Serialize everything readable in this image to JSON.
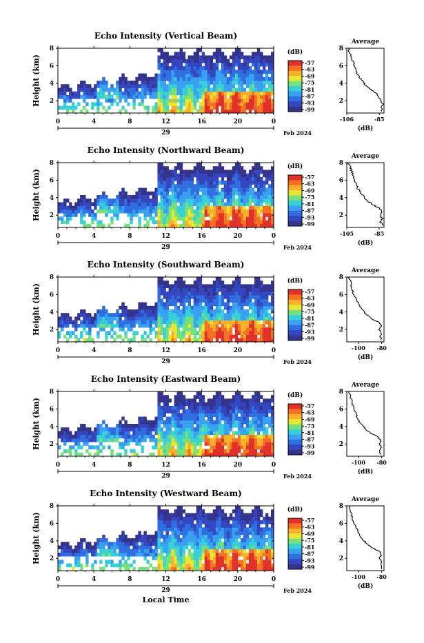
{
  "chart_data": [
    {
      "type": "heatmap",
      "title": "Echo Intensity (Vertical Beam)",
      "ylabel": "Height (km)",
      "ylim": [
        0.6,
        8
      ],
      "y_ticks": [
        "2",
        "4",
        "6",
        "8"
      ],
      "xlim": [
        0,
        24
      ],
      "x_ticks": [
        "0",
        "4",
        "8",
        "12",
        "16",
        "20",
        "0"
      ],
      "date_label": "29",
      "month_label": "Feb 2024",
      "colorbar": {
        "unit": "(dB)",
        "tick_labels": [
          "-57",
          "-63",
          "-69",
          "-75",
          "-81",
          "-87",
          "-93",
          "-99"
        ],
        "colors": [
          "#e0322a",
          "#f47023",
          "#f9b12c",
          "#e8e832",
          "#78e07a",
          "#38d0d8",
          "#3aa0f0",
          "#2f6fe0",
          "#3446c0",
          "#34348c"
        ]
      },
      "average_profile": {
        "title": "Average",
        "xlabel": "(dB)",
        "x_ticks": [
          "-106",
          "-85"
        ],
        "xlim": [
          -106,
          -82
        ],
        "y_ticks": [
          "2",
          "4",
          "6",
          "8"
        ],
        "ylim": [
          0.6,
          8
        ],
        "height_km": [
          0.8,
          1.2,
          1.6,
          2.0,
          2.4,
          2.8,
          3.2,
          3.6,
          4.0,
          4.5,
          5.0,
          5.5,
          6.0,
          6.5,
          7.0,
          7.5,
          8.0
        ],
        "intensity_db": [
          -83,
          -84,
          -83,
          -84,
          -85,
          -86,
          -90,
          -93,
          -95,
          -97,
          -99,
          -100,
          -101,
          -102,
          -103,
          -104,
          -105
        ]
      }
    },
    {
      "type": "heatmap",
      "title": "Echo Intensity (Northward Beam)",
      "ylabel": "Height (km)",
      "ylim": [
        0.6,
        8
      ],
      "y_ticks": [
        "2",
        "4",
        "6",
        "8"
      ],
      "xlim": [
        0,
        24
      ],
      "x_ticks": [
        "0",
        "4",
        "8",
        "12",
        "16",
        "20",
        "0"
      ],
      "date_label": "29",
      "month_label": "Feb 2024",
      "colorbar": {
        "unit": "(dB)",
        "tick_labels": [
          "-57",
          "-63",
          "-69",
          "-75",
          "-81",
          "-87",
          "-93",
          "-99"
        ],
        "colors": [
          "#e0322a",
          "#f47023",
          "#f9b12c",
          "#e8e832",
          "#78e07a",
          "#38d0d8",
          "#3aa0f0",
          "#2f6fe0",
          "#3446c0",
          "#34348c"
        ]
      },
      "average_profile": {
        "title": "Average",
        "xlabel": "(dB)",
        "x_ticks": [
          "-105",
          "-85"
        ],
        "xlim": [
          -105,
          -82
        ],
        "y_ticks": [
          "2",
          "4",
          "6",
          "8"
        ],
        "ylim": [
          0.6,
          8
        ],
        "height_km": [
          0.8,
          1.2,
          1.6,
          2.0,
          2.4,
          2.8,
          3.2,
          3.6,
          4.0,
          4.5,
          5.0,
          5.5,
          6.0,
          6.5,
          7.0,
          7.5,
          8.0
        ],
        "intensity_db": [
          -83,
          -84,
          -83,
          -84,
          -83,
          -85,
          -89,
          -92,
          -94,
          -96,
          -98,
          -99,
          -100,
          -101,
          -102,
          -103,
          -104
        ]
      }
    },
    {
      "type": "heatmap",
      "title": "Echo Intensity (Southward Beam)",
      "ylabel": "Height (km)",
      "ylim": [
        0.6,
        8
      ],
      "y_ticks": [
        "2",
        "4",
        "6",
        "8"
      ],
      "xlim": [
        0,
        24
      ],
      "x_ticks": [
        "0",
        "4",
        "8",
        "12",
        "16",
        "20",
        "0"
      ],
      "date_label": "29",
      "month_label": "Feb 2024",
      "colorbar": {
        "unit": "(dB)",
        "tick_labels": [
          "-57",
          "-63",
          "-69",
          "-75",
          "-81",
          "-87",
          "-93",
          "-99"
        ],
        "colors": [
          "#e0322a",
          "#f47023",
          "#f9b12c",
          "#e8e832",
          "#78e07a",
          "#38d0d8",
          "#3aa0f0",
          "#2f6fe0",
          "#3446c0",
          "#34348c"
        ]
      },
      "average_profile": {
        "title": "Average",
        "xlabel": "(dB)",
        "x_ticks": [
          "-100",
          "-80"
        ],
        "xlim": [
          -110,
          -78
        ],
        "y_ticks": [
          "2",
          "4",
          "6",
          "8"
        ],
        "ylim": [
          0.6,
          8
        ],
        "height_km": [
          0.8,
          1.2,
          1.6,
          2.0,
          2.4,
          2.8,
          3.2,
          3.6,
          4.0,
          4.5,
          5.0,
          5.5,
          6.0,
          6.5,
          7.0,
          7.5,
          8.0
        ],
        "intensity_db": [
          -80,
          -81,
          -80,
          -82,
          -80,
          -82,
          -88,
          -92,
          -95,
          -98,
          -100,
          -102,
          -104,
          -105,
          -106,
          -107,
          -108
        ]
      }
    },
    {
      "type": "heatmap",
      "title": "Echo Intensity (Eastward Beam)",
      "ylabel": "Height (km)",
      "ylim": [
        0.6,
        8
      ],
      "y_ticks": [
        "2",
        "4",
        "6",
        "8"
      ],
      "xlim": [
        0,
        24
      ],
      "x_ticks": [
        "0",
        "4",
        "8",
        "12",
        "16",
        "20",
        "0"
      ],
      "date_label": "29",
      "month_label": "Feb 2024",
      "colorbar": {
        "unit": "(dB)",
        "tick_labels": [
          "-57",
          "-63",
          "-69",
          "-75",
          "-81",
          "-87",
          "-93",
          "-99"
        ],
        "colors": [
          "#e0322a",
          "#f47023",
          "#f9b12c",
          "#e8e832",
          "#78e07a",
          "#38d0d8",
          "#3aa0f0",
          "#2f6fe0",
          "#3446c0",
          "#34348c"
        ]
      },
      "average_profile": {
        "title": "Average",
        "xlabel": "(dB)",
        "x_ticks": [
          "-100",
          "-80"
        ],
        "xlim": [
          -110,
          -78
        ],
        "y_ticks": [
          "2",
          "4",
          "6",
          "8"
        ],
        "ylim": [
          0.6,
          8
        ],
        "height_km": [
          0.8,
          1.2,
          1.6,
          2.0,
          2.4,
          2.8,
          3.2,
          3.6,
          4.0,
          4.5,
          5.0,
          5.5,
          6.0,
          6.5,
          7.0,
          7.5,
          8.0
        ],
        "intensity_db": [
          -80,
          -82,
          -80,
          -82,
          -81,
          -83,
          -89,
          -93,
          -96,
          -99,
          -101,
          -102,
          -104,
          -105,
          -106,
          -107,
          -108
        ]
      }
    },
    {
      "type": "heatmap",
      "title": "Echo Intensity (Westward Beam)",
      "ylabel": "Height (km)",
      "ylim": [
        0.6,
        8
      ],
      "y_ticks": [
        "2",
        "4",
        "6",
        "8"
      ],
      "xlim": [
        0,
        24
      ],
      "x_ticks": [
        "0",
        "4",
        "8",
        "12",
        "16",
        "20",
        "0"
      ],
      "date_label": "29",
      "month_label": "Feb 2024",
      "xlabel": "Local Time",
      "colorbar": {
        "unit": "(dB)",
        "tick_labels": [
          "-57",
          "-63",
          "-69",
          "-75",
          "-81",
          "-87",
          "-93",
          "-99"
        ],
        "colors": [
          "#e0322a",
          "#f47023",
          "#f9b12c",
          "#e8e832",
          "#78e07a",
          "#38d0d8",
          "#3aa0f0",
          "#2f6fe0",
          "#3446c0",
          "#34348c"
        ]
      },
      "average_profile": {
        "title": "Average",
        "xlabel": "(dB)",
        "x_ticks": [
          "-100",
          "-80"
        ],
        "xlim": [
          -110,
          -78
        ],
        "y_ticks": [
          "2",
          "4",
          "6",
          "8"
        ],
        "ylim": [
          0.6,
          8
        ],
        "height_km": [
          0.8,
          1.2,
          1.6,
          2.0,
          2.4,
          2.8,
          3.2,
          3.6,
          4.0,
          4.5,
          5.0,
          5.5,
          6.0,
          6.5,
          7.0,
          7.5,
          8.0
        ],
        "intensity_db": [
          -80,
          -81,
          -80,
          -82,
          -80,
          -82,
          -88,
          -92,
          -95,
          -98,
          -100,
          -102,
          -104,
          -105,
          -106,
          -107,
          -108
        ]
      }
    }
  ]
}
